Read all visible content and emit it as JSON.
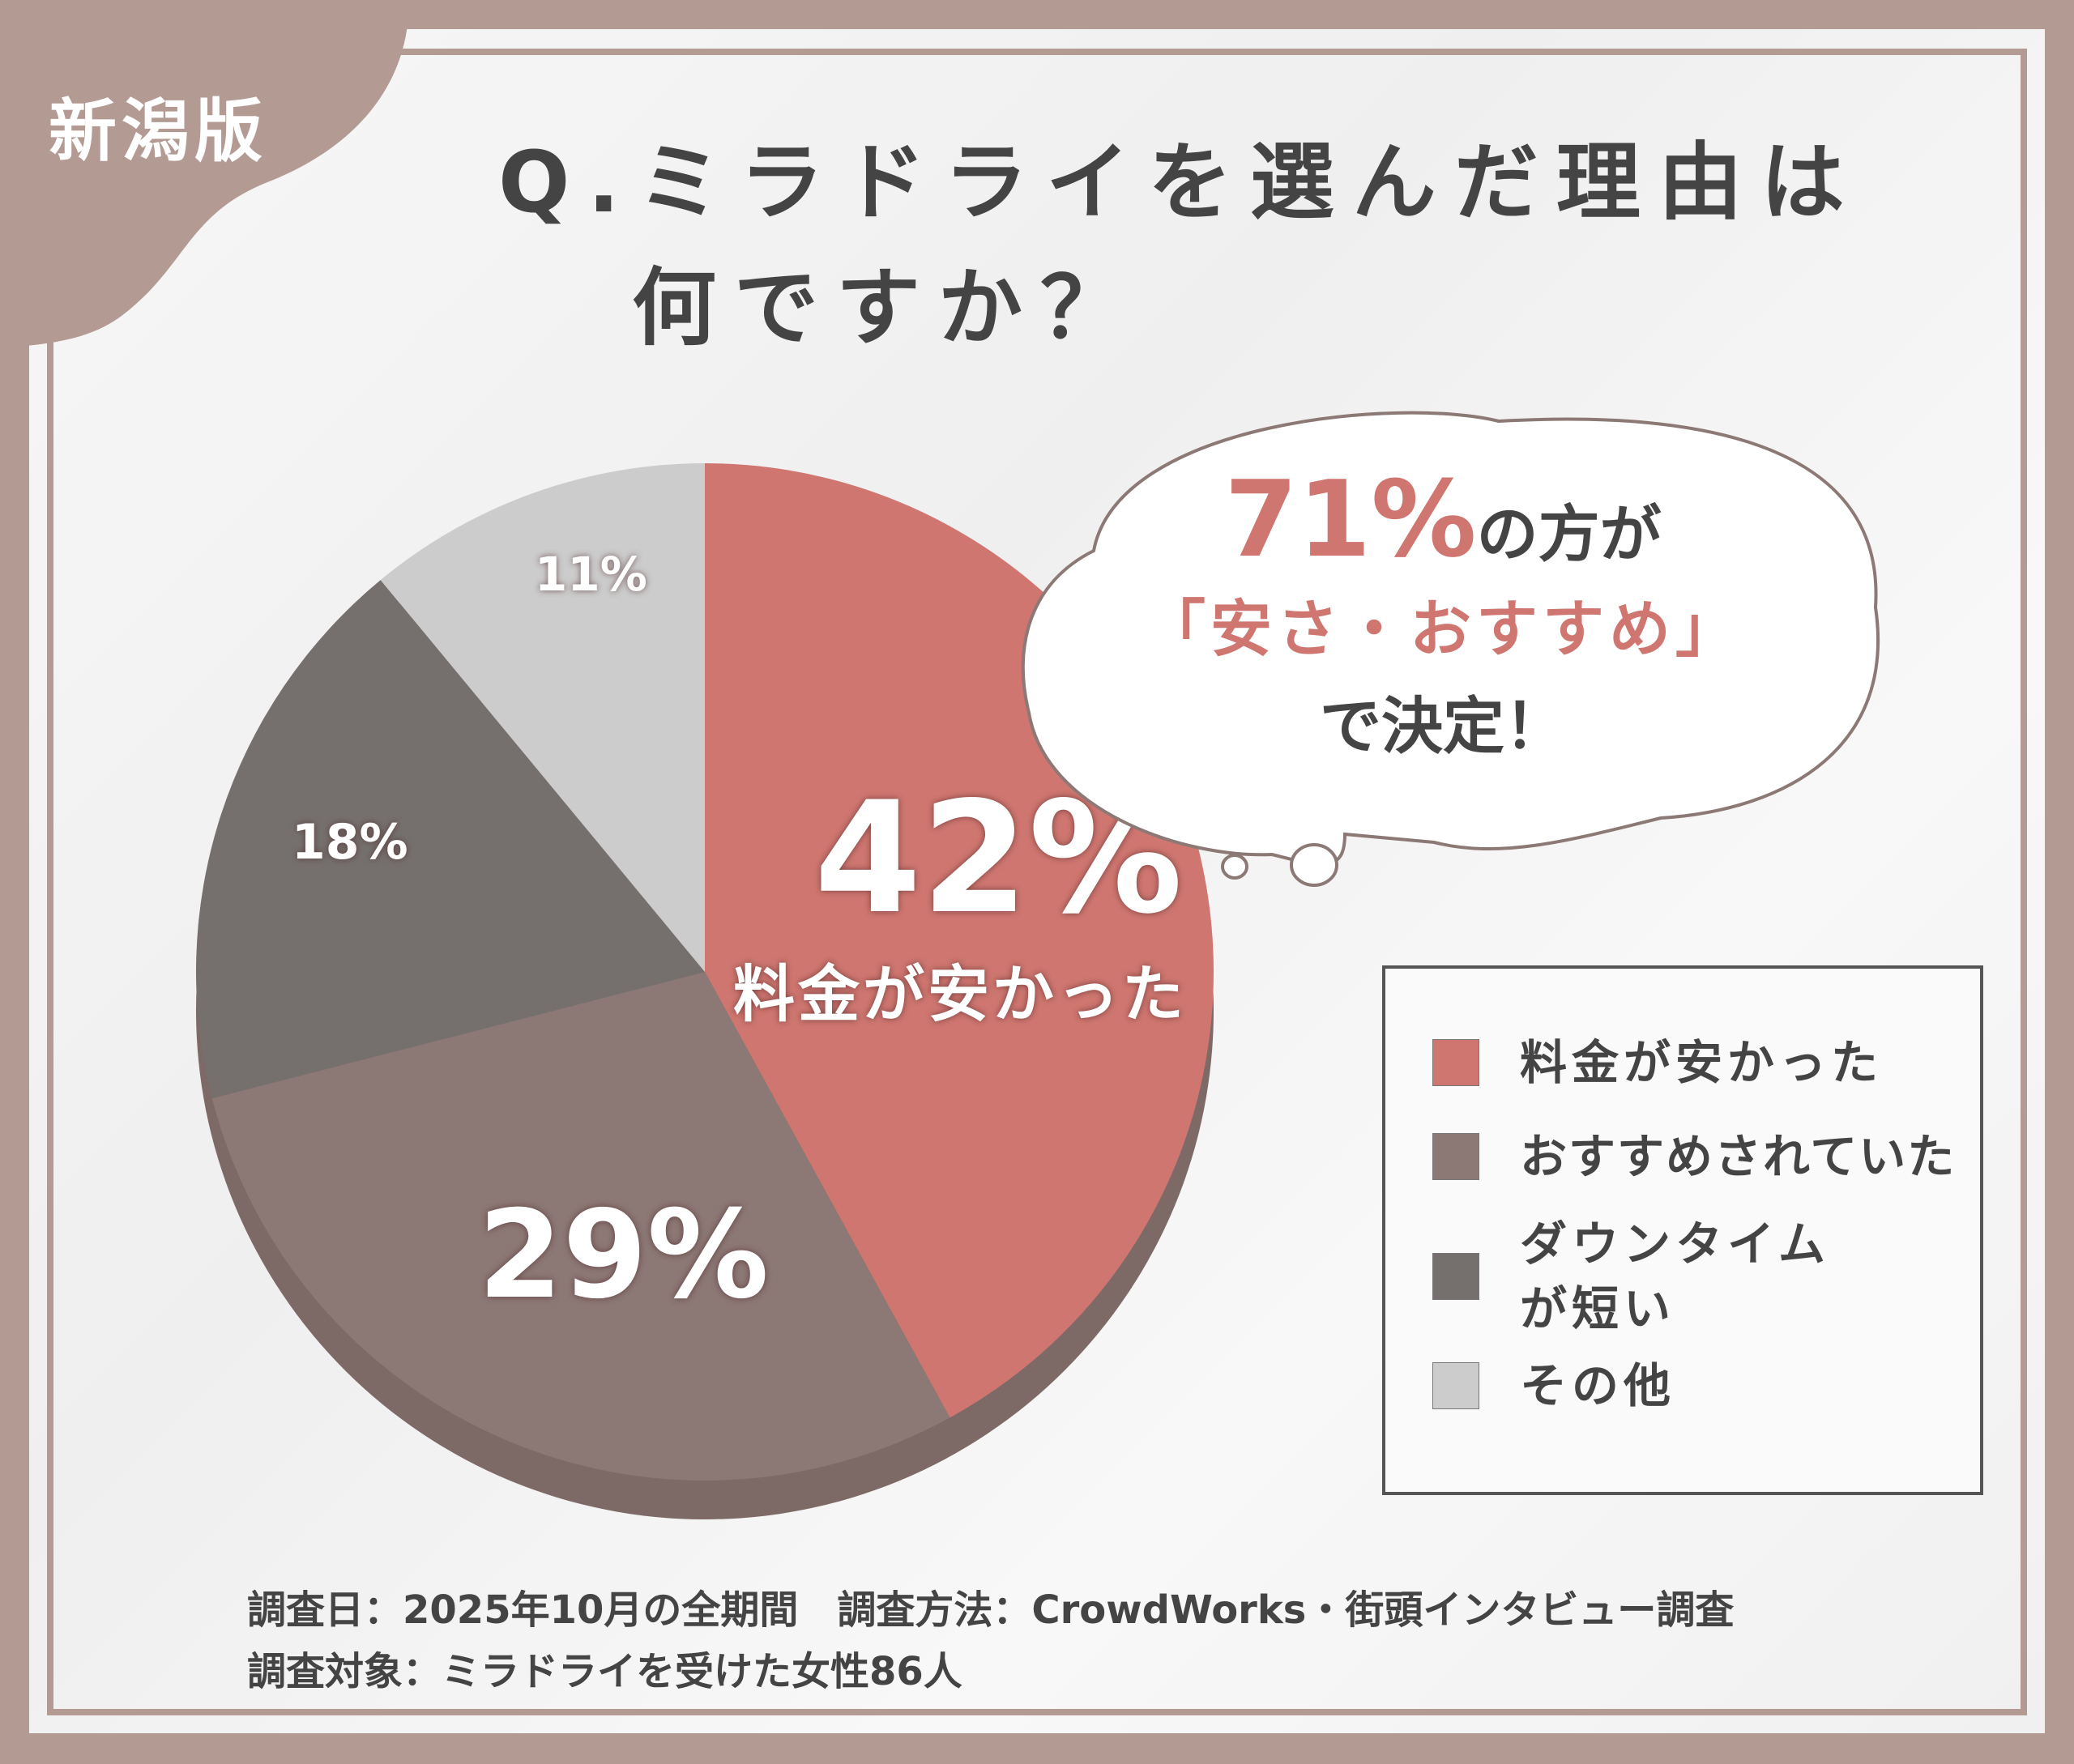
{
  "edition": "新潟版",
  "title_line1": "Q.ミラドライを選んだ理由は",
  "title_line2": "何ですか？",
  "bubble": {
    "pct": "71%",
    "line1_rest": "の方が",
    "line2": "「安さ・おすすめ」",
    "line3": "で決定！"
  },
  "colors": {
    "frame": "#b39a92",
    "accent": "#cf7670"
  },
  "chart_data": {
    "type": "pie",
    "categories": [
      "料金が安かった",
      "おすすめされていた",
      "ダウンタイムが短い",
      "その他"
    ],
    "values": [
      42,
      29,
      18,
      11
    ],
    "data_labels": [
      "42%",
      "29%",
      "18%",
      "11%"
    ],
    "inner_caption": "料金が安かった",
    "colors": [
      "#cf7670",
      "#8c7875",
      "#75706e",
      "#cccccc"
    ],
    "legend": "right",
    "start": "top, clockwise"
  },
  "footer": {
    "line1": "調査日：2025年10月の全期間　調査方法：CrowdWorks・街頭インタビュー調査",
    "line2": "調査対象：ミラドライを受けた女性86人"
  }
}
